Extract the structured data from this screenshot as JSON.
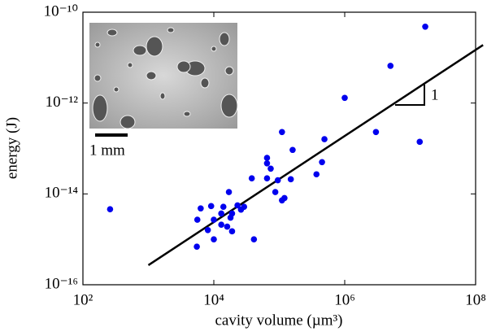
{
  "chart_data": {
    "type": "scatter",
    "xlabel": "cavity volume (µm³)",
    "ylabel": "energy (J)",
    "xscale": "log",
    "yscale": "log",
    "xlim": [
      100,
      100000000
    ],
    "ylim": [
      1e-16,
      1e-10
    ],
    "xticks": [
      {
        "value": 100,
        "label": "10²"
      },
      {
        "value": 10000,
        "label": "10⁴"
      },
      {
        "value": 1000000,
        "label": "10⁶"
      },
      {
        "value": 100000000,
        "label": "10⁸"
      }
    ],
    "yticks": [
      {
        "value": 1e-16,
        "label": "10⁻¹⁶"
      },
      {
        "value": 1e-14,
        "label": "10⁻¹⁴"
      },
      {
        "value": 1e-12,
        "label": "10⁻¹²"
      },
      {
        "value": 1e-10,
        "label": "10⁻¹⁰"
      }
    ],
    "color": "#0000ee",
    "x": [
      17000000.0,
      5000000.0,
      1000000.0,
      3000000.0,
      14000000.0,
      110000.0,
      490000.0,
      160000.0,
      65000.0,
      450000.0,
      65000.0,
      74000.0,
      370000.0,
      38000.0,
      65000.0,
      95000.0,
      150000.0,
      87000.0,
      120000.0,
      110000.0,
      17000.0,
      260.0,
      9100.0,
      6300.0,
      5600.0,
      14000.0,
      23000.0,
      29000.0,
      26000.0,
      19000.0,
      13000.0,
      18000.0,
      13000.0,
      10000.0,
      16000.0,
      19000.0,
      8100.0,
      41000.0,
      10000.0,
      5500.0
    ],
    "values": [
      4.8e-11,
      6.6e-12,
      1.3e-12,
      2.3e-13,
      1.4e-13,
      2.3e-13,
      1.6e-13,
      9.3e-14,
      6.2e-14,
      5e-14,
      4.7e-14,
      3.6e-14,
      2.7e-14,
      2.2e-14,
      2.2e-14,
      2e-14,
      2.1e-14,
      1.1e-14,
      8.1e-15,
      7.2e-15,
      1.1e-14,
      4.6e-15,
      5.4e-15,
      4.8e-15,
      2.7e-15,
      5.2e-15,
      5.6e-15,
      5.2e-15,
      4.5e-15,
      3.7e-15,
      3.7e-15,
      3e-15,
      2.1e-15,
      2.7e-15,
      1.9e-15,
      1.5e-15,
      1.6e-15,
      1e-15,
      1e-15,
      6.9e-16
    ],
    "fit_line": {
      "x": [
        1000,
        130000000
      ],
      "values": [
        2.7e-16,
        1.9e-11
      ]
    },
    "slope_label": "1",
    "inset_scale_label": "1 mm"
  }
}
